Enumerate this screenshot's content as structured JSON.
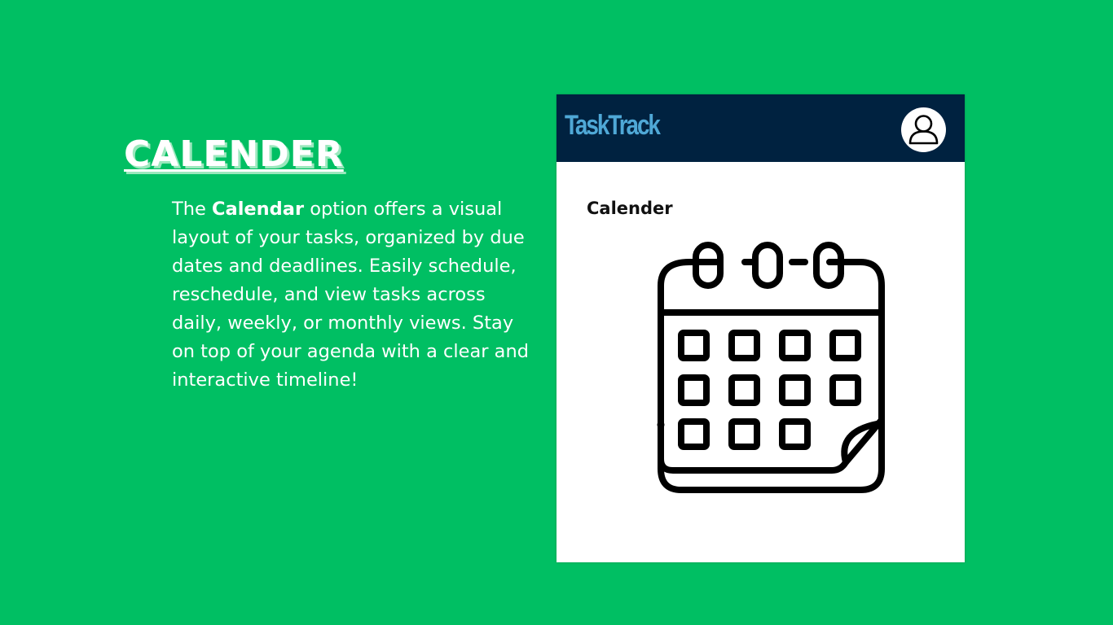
{
  "slide": {
    "heading": "CALENDER",
    "description": {
      "intro": "The ",
      "highlight": "Calendar",
      "body": " option offers a visual layout of your tasks, organized by due dates and deadlines. Easily schedule, reschedule, and view tasks across daily, weekly, or monthly views. Stay on top of your agenda with a clear and interactive timeline!"
    }
  },
  "app": {
    "brand": "TaskTrack",
    "avatar_icon": "user-icon",
    "section_title": "Calender",
    "main_icon": "calendar-icon"
  },
  "colors": {
    "background": "#00bf63",
    "header": "#002240",
    "brand": "#4fa8d6",
    "panel": "#ffffff"
  }
}
